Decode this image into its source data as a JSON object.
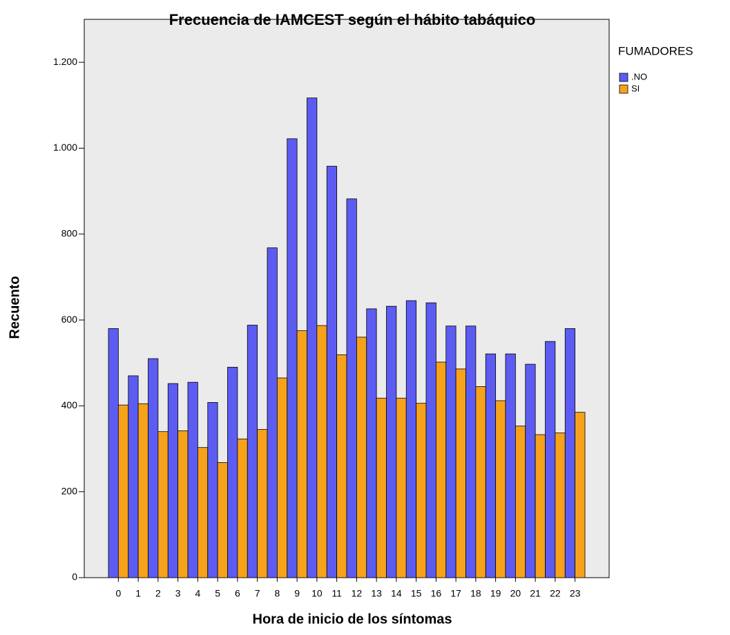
{
  "chart_data": {
    "type": "bar",
    "title": "Frecuencia de IAMCEST según el hábito tabáquico",
    "x_label": "Hora de inicio de los síntomas",
    "y_label": "Recuento",
    "legend_title": "FUMADORES",
    "legend_position": "right",
    "categories": [
      "0",
      "1",
      "2",
      "3",
      "4",
      "5",
      "6",
      "7",
      "8",
      "9",
      "10",
      "11",
      "12",
      "13",
      "14",
      "15",
      "16",
      "17",
      "18",
      "19",
      "20",
      "21",
      "22",
      "23"
    ],
    "series": [
      {
        "name": ".NO",
        "color": "#5c5cf2",
        "values": [
          580,
          470,
          510,
          452,
          455,
          408,
          490,
          588,
          768,
          1022,
          1117,
          958,
          882,
          626,
          632,
          645,
          640,
          586,
          586,
          521,
          521,
          497,
          550,
          580
        ]
      },
      {
        "name": "SI",
        "color": "#f7a21b",
        "values": [
          402,
          405,
          340,
          342,
          303,
          268,
          323,
          345,
          465,
          575,
          587,
          519,
          560,
          418,
          418,
          406,
          502,
          486,
          445,
          412,
          353,
          333,
          337,
          385
        ]
      }
    ],
    "ylim": [
      0,
      1300
    ],
    "yticks": [
      0,
      200,
      400,
      600,
      800,
      {
        "value": 1000,
        "label": "1.000"
      },
      {
        "value": 1200,
        "label": "1.200"
      }
    ],
    "grid": false
  }
}
